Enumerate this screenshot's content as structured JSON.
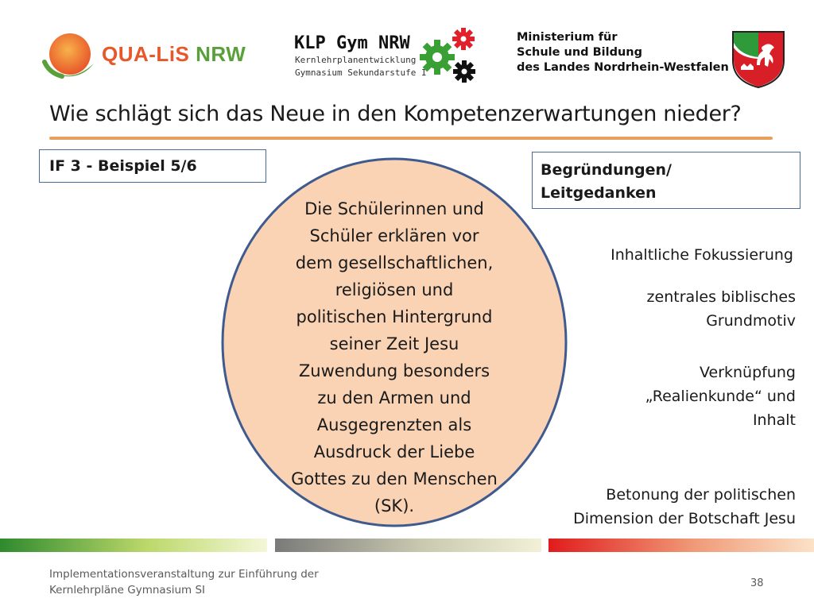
{
  "header": {
    "qualis": {
      "text_part1": "QUA-LiS",
      "text_part2": " NRW",
      "color_orange": "#e8572a",
      "color_green": "#5aa03a"
    },
    "klp": {
      "title_part1": "KLP Gym ",
      "title_part2": "NRW",
      "subtitle_line1": "Kernlehrplanentwicklung",
      "subtitle_line2": "Gymnasium Sekundarstufe I"
    },
    "ministry": {
      "line1": "Ministerium für",
      "line2": "Schule und Bildung",
      "line3": "des Landes Nordrhein-Westfalen"
    }
  },
  "title": "Wie schlägt sich das Neue in den Kompetenzerwartungen nieder?",
  "left_box": {
    "label": "IF 3 - Beispiel  5/6"
  },
  "right_box": {
    "line1": "Begründungen/",
    "line2": "Leitgedanken"
  },
  "circle": {
    "fill": "#f9d3b4",
    "border": "#3e5a8e",
    "lines": [
      "Die Schülerinnen und",
      "Schüler erklären vor",
      "dem gesellschaftlichen,",
      "religiösen und",
      "politischen Hintergrund",
      "seiner Zeit Jesu",
      "Zuwendung besonders",
      "zu den Armen und",
      "Ausgegrenzten als",
      "Ausdruck der Liebe",
      "Gottes zu den Menschen",
      "(SK)."
    ]
  },
  "rationale": {
    "fokus": "Inhaltliche Fokussierung",
    "motiv": [
      "zentrales biblisches",
      "Grundmotiv"
    ],
    "verkn": [
      "Verknüpfung",
      "„Realienkunde“ und",
      "Inhalt"
    ],
    "beton": [
      "Betonung der politischen",
      "Dimension der Botschaft Jesu"
    ]
  },
  "footer": {
    "line1": "Implementationsveranstaltung zur Einführung der",
    "line2": "Kernlehrpläne Gymnasium SI",
    "page_number": "38"
  }
}
